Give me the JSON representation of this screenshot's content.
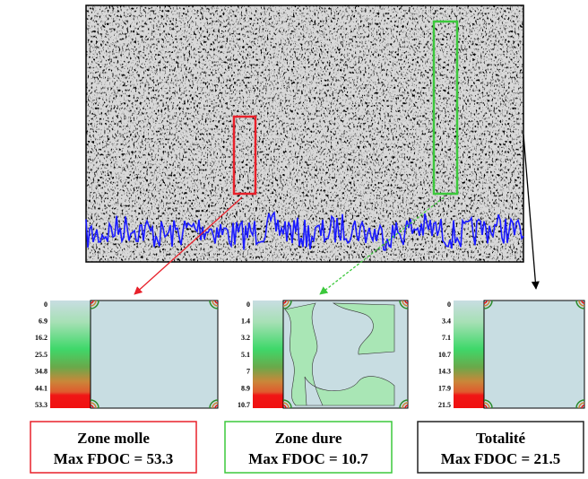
{
  "panels": [
    {
      "scale": [
        0,
        6.9,
        16.2,
        25.5,
        34.8,
        44.1,
        53.3
      ],
      "caption": [
        "Zone molle",
        "Max FDOC = 53.3"
      ],
      "color": "#e8202a"
    },
    {
      "scale": [
        0,
        1.4,
        3.2,
        5.1,
        7.0,
        8.9,
        10.7
      ],
      "caption": [
        "Zone dure",
        "Max FDOC = 10.7"
      ],
      "color": "#3cc83c"
    },
    {
      "scale": [
        0,
        3.4,
        7.1,
        10.7,
        14.3,
        17.9,
        21.5
      ],
      "caption": [
        "Totalité",
        "Max FDOC = 21.5"
      ],
      "color": "#222222"
    }
  ]
}
